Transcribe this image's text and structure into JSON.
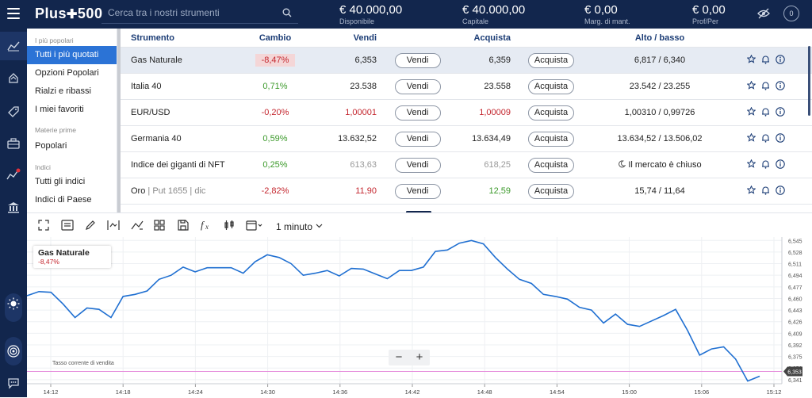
{
  "header": {
    "logo": "Plus500",
    "search_placeholder": "Cerca tra i nostri strumenti",
    "stats": [
      {
        "value": "€ 40.000,00",
        "label": "Disponibile"
      },
      {
        "value": "€ 40.000,00",
        "label": "Capitale"
      },
      {
        "value": "€ 0,00",
        "label": "Marg. di mant."
      },
      {
        "value": "€ 0,00",
        "label": "Prof/Per"
      }
    ],
    "notif_count": "0"
  },
  "nav": {
    "sections": [
      {
        "title": "I più popolari",
        "items": [
          "Tutti i più quotati",
          "Opzioni Popolari",
          "Rialzi e ribassi",
          "I miei favoriti"
        ]
      },
      {
        "title": "Materie prime",
        "items": [
          "Popolari"
        ]
      },
      {
        "title": "Indici",
        "items": [
          "Tutti gli indici",
          "Indici di Paese"
        ]
      }
    ]
  },
  "table": {
    "headers": {
      "name": "Strumento",
      "change": "Cambio",
      "sell": "Vendi",
      "buy": "Acquista",
      "highlow": "Alto / basso"
    },
    "sell_btn": "Vendi",
    "buy_btn": "Acquista",
    "rows": [
      {
        "name": "Gas Naturale",
        "sub": "",
        "change": "-8,47%",
        "sell": "6,353",
        "buy": "6,359",
        "highlow": "6,817 / 6,340"
      },
      {
        "name": "Italia 40",
        "sub": "",
        "change": "0,71%",
        "sell": "23.538",
        "buy": "23.558",
        "highlow": "23.542 / 23.255"
      },
      {
        "name": "EUR/USD",
        "sub": "",
        "change": "-0,20%",
        "sell": "1,00001",
        "buy": "1,00009",
        "highlow": "1,00310 / 0,99726"
      },
      {
        "name": "Germania 40",
        "sub": "",
        "change": "0,59%",
        "sell": "13.632,52",
        "buy": "13.634,49",
        "highlow": "13.634,52 / 13.506,02"
      },
      {
        "name": "Indice dei giganti di NFT",
        "sub": "",
        "change": "0,25%",
        "sell": "613,63",
        "buy": "618,25",
        "highlow": "Il mercato è chiuso"
      },
      {
        "name": "Oro",
        "sub": " | Put 1655 | dic",
        "change": "-2,82%",
        "sell": "11,90",
        "buy": "12,59",
        "highlow": "15,74 / 11,64"
      }
    ]
  },
  "chart_toolbar": {
    "timeframe": "1 minuto"
  },
  "chart_legend": {
    "name": "Gas Naturale",
    "change": "-8,47%"
  },
  "chart_labels": {
    "rate_label": "Tasso corrente di vendita",
    "current_price": "6,353"
  },
  "chart_data": {
    "type": "line",
    "x_ticks": [
      "14:12",
      "14:18",
      "14:24",
      "14:30",
      "14:36",
      "14:42",
      "14:48",
      "14:54",
      "15:00",
      "15:06",
      "15:12"
    ],
    "y_ticks": [
      "6,545",
      "6,528",
      "6,511",
      "6,494",
      "6,477",
      "6,460",
      "6,443",
      "6,426",
      "6,409",
      "6,392",
      "6,375",
      "6,358",
      "6,341"
    ],
    "ylim": [
      6.335,
      6.55
    ],
    "series": [
      {
        "name": "Gas Naturale",
        "color": "#1f6fd1",
        "values": [
          6.464,
          6.47,
          6.469,
          6.452,
          6.432,
          6.446,
          6.444,
          6.432,
          6.463,
          6.466,
          6.471,
          6.488,
          6.494,
          6.506,
          6.499,
          6.505,
          6.505,
          6.505,
          6.497,
          6.514,
          6.524,
          6.52,
          6.511,
          6.494,
          6.497,
          6.501,
          6.493,
          6.504,
          6.503,
          6.496,
          6.489,
          6.501,
          6.501,
          6.506,
          6.529,
          6.531,
          6.541,
          6.545,
          6.54,
          6.52,
          6.503,
          6.488,
          6.482,
          6.466,
          6.463,
          6.459,
          6.447,
          6.443,
          6.424,
          6.437,
          6.422,
          6.419,
          6.427,
          6.435,
          6.444,
          6.413,
          6.377,
          6.386,
          6.389,
          6.371,
          6.339,
          6.346
        ]
      }
    ],
    "current_price": 6.353,
    "grid": true
  },
  "colors": {
    "brand": "#12264d",
    "accent": "#2b73d6",
    "negative": "#c4262e",
    "positive": "#3c9a2b",
    "line": "#1f6fd1"
  }
}
